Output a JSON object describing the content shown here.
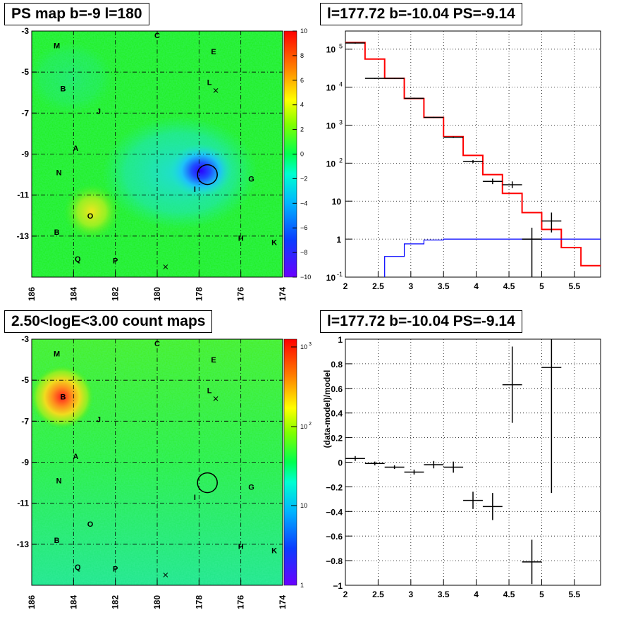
{
  "panels": {
    "ps_map": {
      "title": "PS map b=-9 l=180",
      "x_ticks": [
        "186",
        "184",
        "182",
        "180",
        "178",
        "176",
        "174"
      ],
      "y_ticks": [
        "-3",
        "-5",
        "-7",
        "-9",
        "-11",
        "-13"
      ],
      "colorbar_ticks": [
        "10",
        "8",
        "6",
        "4",
        "2",
        "0",
        "−2",
        "−4",
        "−6",
        "−8",
        "−10"
      ],
      "colors": {
        "background": "#1ef01e",
        "blue_spot": "#1e5cff",
        "cyan": "#1ee6e6",
        "yellow": "#e0e81e"
      }
    },
    "count_map": {
      "title": "2.50<logE<3.00 count maps",
      "x_ticks": [
        "186",
        "184",
        "182",
        "180",
        "178",
        "176",
        "174"
      ],
      "y_ticks": [
        "-3",
        "-5",
        "-7",
        "-9",
        "-11",
        "-13"
      ],
      "colorbar_ticks": [
        "10",
        "10",
        "10"
      ],
      "colorbar_exponents": [
        "3",
        "2",
        ""
      ],
      "colorbar_bottom": "1"
    },
    "spectrum": {
      "title": "l=177.72 b=-10.04 PS=-9.14"
    },
    "residual": {
      "title": "l=177.72 b=-10.04 PS=-9.14",
      "ylabel": "(data-model)/model"
    }
  },
  "sources": [
    {
      "label": "M",
      "l": 184.8,
      "b": -3.7
    },
    {
      "label": "C",
      "l": 180.0,
      "b": -3.2
    },
    {
      "label": "E",
      "l": 177.3,
      "b": -4.0
    },
    {
      "label": "L",
      "l": 177.5,
      "b": -5.5
    },
    {
      "label": "B",
      "l": 184.5,
      "b": -5.8
    },
    {
      "label": "J",
      "l": 182.8,
      "b": -6.9
    },
    {
      "label": "A",
      "l": 183.9,
      "b": -8.7
    },
    {
      "label": "N",
      "l": 184.7,
      "b": -9.9
    },
    {
      "label": "G",
      "l": 175.5,
      "b": -10.2
    },
    {
      "label": "I",
      "l": 178.2,
      "b": -10.7
    },
    {
      "label": "O",
      "l": 183.2,
      "b": -12.0
    },
    {
      "label": "B",
      "l": 184.8,
      "b": -12.8
    },
    {
      "label": "H",
      "l": 176.0,
      "b": -13.1
    },
    {
      "label": "K",
      "l": 174.4,
      "b": -13.3
    },
    {
      "label": "Q",
      "l": 183.8,
      "b": -14.1
    },
    {
      "label": "P",
      "l": 182.0,
      "b": -14.2
    }
  ],
  "chart_data": [
    {
      "type": "heatmap",
      "title": "PS map b=-9 l=180",
      "xlim": [
        186,
        174
      ],
      "ylim": [
        -15,
        -3
      ],
      "z_range": [
        -10,
        10
      ],
      "features": [
        {
          "desc": "minimum",
          "l": 177.72,
          "b": -10.04,
          "value": -9.14
        }
      ],
      "markers_x": [
        {
          "l": 177.2,
          "b": -5.9
        },
        {
          "l": 179.6,
          "b": -14.5
        }
      ]
    },
    {
      "type": "heatmap",
      "title": "2.50<logE<3.00 count maps",
      "xlim": [
        186,
        174
      ],
      "ylim": [
        -15,
        -3
      ],
      "z_scale": "log",
      "z_range": [
        1,
        1500
      ],
      "features": [
        {
          "desc": "maximum",
          "l": 184.6,
          "b": -5.7
        }
      ],
      "markers_x": [
        {
          "l": 177.2,
          "b": -5.9
        },
        {
          "l": 179.6,
          "b": -14.5
        }
      ]
    },
    {
      "type": "line",
      "title": "l=177.72 b=-10.04 PS=-9.14",
      "xlim": [
        2,
        5.9
      ],
      "ylim": [
        0.1,
        300000
      ],
      "yscale": "log",
      "x_ticks": [
        "2",
        "2.5",
        "3",
        "3.5",
        "4",
        "4.5",
        "5",
        "5.5"
      ],
      "y_ticks": [
        "10^-1",
        "1",
        "10",
        "10^2",
        "10^3",
        "10^4",
        "10^5"
      ],
      "series": [
        {
          "color": "#ff0000",
          "edges": [
            2.0,
            2.3,
            2.6,
            2.9,
            3.2,
            3.5,
            3.8,
            4.1,
            4.4,
            4.7,
            5.0,
            5.3,
            5.6,
            5.9
          ],
          "values": [
            150000,
            55000,
            17000,
            5000,
            1600,
            500,
            160,
            50,
            16,
            5,
            1.8,
            0.6,
            0.2
          ]
        },
        {
          "color": "#0000ff",
          "edges": [
            2.6,
            2.9,
            3.2,
            3.5,
            3.8,
            4.1,
            4.4,
            4.7,
            5.0,
            5.3,
            5.6,
            5.9
          ],
          "values": [
            0.35,
            0.75,
            0.95,
            1.0,
            1.0,
            1.0,
            1.0,
            1.0,
            1.0,
            1.0,
            1.0
          ]
        },
        {
          "color": "#000000",
          "points": [
            {
              "x": 2.15,
              "y": 145000,
              "xerr": 0.15,
              "ylo": 140000,
              "yhi": 150000
            },
            {
              "x": 2.45,
              "y": 17000,
              "xerr": 0.15,
              "ylo": 16500,
              "yhi": 17500
            },
            {
              "x": 2.75,
              "y": 17000,
              "xerr": 0.15,
              "ylo": 16500,
              "yhi": 17500
            },
            {
              "x": 3.05,
              "y": 5100,
              "xerr": 0.15,
              "ylo": 4950,
              "yhi": 5250
            },
            {
              "x": 3.35,
              "y": 1600,
              "xerr": 0.15,
              "ylo": 1550,
              "yhi": 1650
            },
            {
              "x": 3.65,
              "y": 480,
              "xerr": 0.15,
              "ylo": 460,
              "yhi": 500
            },
            {
              "x": 3.95,
              "y": 110,
              "xerr": 0.15,
              "ylo": 100,
              "yhi": 120
            },
            {
              "x": 4.25,
              "y": 33,
              "xerr": 0.15,
              "ylo": 28,
              "yhi": 39
            },
            {
              "x": 4.55,
              "y": 27,
              "xerr": 0.15,
              "ylo": 22,
              "yhi": 33
            },
            {
              "x": 4.85,
              "y": 1.0,
              "xerr": 0.15,
              "ylo": 0.1,
              "yhi": 2.0
            },
            {
              "x": 5.15,
              "y": 3.0,
              "xerr": 0.15,
              "ylo": 1.5,
              "yhi": 5.0
            }
          ]
        }
      ]
    },
    {
      "type": "scatter",
      "title": "l=177.72 b=-10.04 PS=-9.14",
      "ylabel": "(data-model)/model",
      "xlim": [
        2,
        5.9
      ],
      "ylim": [
        -1,
        1
      ],
      "x_ticks": [
        "2",
        "2.5",
        "3",
        "3.5",
        "4",
        "4.5",
        "5",
        "5.5"
      ],
      "y_ticks": [
        "−1",
        "−0.8",
        "−0.6",
        "−0.4",
        "−0.2",
        "0",
        "0.2",
        "0.4",
        "0.6",
        "0.8",
        "1"
      ],
      "points": [
        {
          "x": 2.15,
          "y": 0.03,
          "xerr": 0.15,
          "yerr": 0.02
        },
        {
          "x": 2.45,
          "y": -0.01,
          "xerr": 0.15,
          "yerr": 0.015
        },
        {
          "x": 2.75,
          "y": -0.04,
          "xerr": 0.15,
          "yerr": 0.015
        },
        {
          "x": 3.05,
          "y": -0.08,
          "xerr": 0.15,
          "yerr": 0.02
        },
        {
          "x": 3.35,
          "y": -0.02,
          "xerr": 0.15,
          "yerr": 0.03
        },
        {
          "x": 3.65,
          "y": -0.04,
          "xerr": 0.15,
          "yerr": 0.045
        },
        {
          "x": 3.95,
          "y": -0.31,
          "xerr": 0.15,
          "yerr": 0.07
        },
        {
          "x": 4.25,
          "y": -0.36,
          "xerr": 0.15,
          "yerr": 0.11
        },
        {
          "x": 4.55,
          "y": 0.63,
          "xerr": 0.15,
          "yerr": 0.31
        },
        {
          "x": 4.85,
          "y": -0.81,
          "xerr": 0.15,
          "yerr": 0.18
        },
        {
          "x": 5.15,
          "y": 0.77,
          "xerr": 0.15,
          "yerr": 1.02
        }
      ]
    }
  ]
}
